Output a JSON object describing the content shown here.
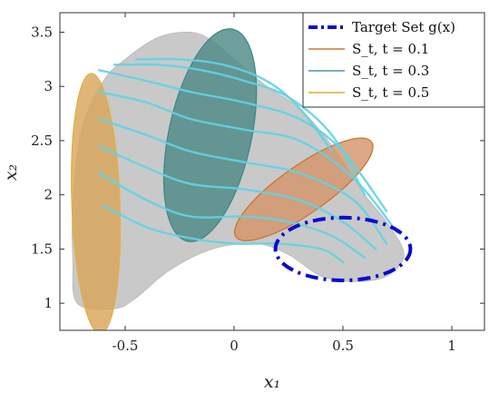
{
  "chart_data": {
    "type": "line",
    "title": "",
    "xlabel": "x₁",
    "ylabel": "x₂",
    "xlim": [
      -0.8,
      1.15
    ],
    "ylim": [
      0.75,
      3.68
    ],
    "grid": false,
    "xticks": [
      -0.5,
      0,
      0.5,
      1
    ],
    "xtick_labels": [
      "-0.5",
      "0",
      "0.5",
      "1"
    ],
    "yticks": [
      1,
      1.5,
      2,
      2.5,
      3,
      3.5
    ],
    "ytick_labels": [
      "1",
      "1.5",
      "2",
      "2.5",
      "3",
      "3.5"
    ],
    "legend": {
      "position": "top-right",
      "entries": [
        {
          "label": "Target Set g(x)",
          "color": "#0a0ad0",
          "style": "dash-dot"
        },
        {
          "label": "S_t, t = 0.1",
          "color": "#c87830",
          "style": "solid"
        },
        {
          "label": "S_t, t = 0.3",
          "color": "#4a9aa6",
          "style": "solid"
        },
        {
          "label": "S_t, t = 0.5",
          "color": "#d8b030",
          "style": "solid"
        }
      ]
    },
    "sets": [
      {
        "name": "Target Set g(x)",
        "shape": "ellipse",
        "center": [
          0.5,
          1.5
        ],
        "semi_axes": [
          0.31,
          0.29
        ],
        "angle_deg": 0,
        "color": "#0a0ad0",
        "fill": "none"
      },
      {
        "name": "S_t, t = 0.1",
        "shape": "ellipse",
        "center": [
          0.32,
          2.05
        ],
        "semi_axes": [
          0.38,
          0.22
        ],
        "angle_deg": 35,
        "color": "#c87830",
        "fill": "#d4956a"
      },
      {
        "name": "S_t, t = 0.3",
        "shape": "ellipse",
        "center": [
          -0.11,
          2.55
        ],
        "semi_axes": [
          0.19,
          1.0
        ],
        "angle_deg": -12,
        "color": "#3c8a8a",
        "fill": "#4e8a86"
      },
      {
        "name": "S_t, t = 0.5",
        "shape": "ellipse",
        "center": [
          -0.635,
          1.92
        ],
        "semi_axes": [
          0.11,
          1.2
        ],
        "angle_deg": 2,
        "color": "#e0b040",
        "fill": "#d9a65a"
      }
    ],
    "trajectories": [
      [
        [
          -0.6,
          1.9
        ],
        [
          -0.4,
          1.7
        ],
        [
          -0.2,
          1.6
        ],
        [
          0.0,
          1.55
        ],
        [
          0.2,
          1.55
        ],
        [
          0.4,
          1.5
        ],
        [
          0.5,
          1.38
        ]
      ],
      [
        [
          -0.62,
          2.2
        ],
        [
          -0.4,
          1.95
        ],
        [
          -0.2,
          1.8
        ],
        [
          0.05,
          1.8
        ],
        [
          0.25,
          1.75
        ],
        [
          0.45,
          1.62
        ],
        [
          0.6,
          1.42
        ]
      ],
      [
        [
          -0.62,
          2.45
        ],
        [
          -0.4,
          2.25
        ],
        [
          -0.2,
          2.1
        ],
        [
          0.05,
          2.05
        ],
        [
          0.3,
          1.95
        ],
        [
          0.5,
          1.75
        ],
        [
          0.65,
          1.5
        ]
      ],
      [
        [
          -0.62,
          2.7
        ],
        [
          -0.4,
          2.55
        ],
        [
          -0.2,
          2.4
        ],
        [
          0.05,
          2.3
        ],
        [
          0.3,
          2.2
        ],
        [
          0.55,
          1.95
        ],
        [
          0.7,
          1.55
        ]
      ],
      [
        [
          -0.62,
          2.95
        ],
        [
          -0.4,
          2.85
        ],
        [
          -0.2,
          2.7
        ],
        [
          0.05,
          2.6
        ],
        [
          0.3,
          2.5
        ],
        [
          0.55,
          2.15
        ],
        [
          0.75,
          1.65
        ]
      ],
      [
        [
          -0.62,
          3.15
        ],
        [
          -0.4,
          3.05
        ],
        [
          -0.2,
          2.95
        ],
        [
          0.05,
          2.85
        ],
        [
          0.3,
          2.7
        ],
        [
          0.5,
          2.4
        ],
        [
          0.7,
          1.85
        ]
      ],
      [
        [
          -0.55,
          3.2
        ],
        [
          -0.35,
          3.2
        ],
        [
          -0.15,
          3.15
        ],
        [
          0.05,
          3.05
        ],
        [
          0.25,
          2.9
        ],
        [
          0.45,
          2.55
        ],
        [
          0.6,
          2.0
        ]
      ],
      [
        [
          -0.45,
          3.25
        ],
        [
          -0.25,
          3.25
        ],
        [
          -0.05,
          3.2
        ],
        [
          0.15,
          3.05
        ],
        [
          0.3,
          2.8
        ],
        [
          0.45,
          2.4
        ]
      ]
    ],
    "samples_region": [
      [
        -0.72,
        1.0
      ],
      [
        -0.55,
        0.95
      ],
      [
        -0.45,
        1.05
      ],
      [
        -0.3,
        1.3
      ],
      [
        -0.1,
        1.5
      ],
      [
        0.1,
        1.55
      ],
      [
        0.25,
        1.45
      ],
      [
        0.4,
        1.25
      ],
      [
        0.55,
        1.2
      ],
      [
        0.7,
        1.25
      ],
      [
        0.78,
        1.45
      ],
      [
        0.7,
        1.75
      ],
      [
        0.6,
        2.0
      ],
      [
        0.45,
        2.45
      ],
      [
        0.3,
        2.8
      ],
      [
        0.15,
        3.0
      ],
      [
        0.0,
        3.25
      ],
      [
        -0.1,
        3.42
      ],
      [
        -0.2,
        3.5
      ],
      [
        -0.35,
        3.45
      ],
      [
        -0.5,
        3.25
      ],
      [
        -0.6,
        3.05
      ],
      [
        -0.7,
        2.6
      ],
      [
        -0.74,
        1.9
      ],
      [
        -0.74,
        1.4
      ]
    ]
  }
}
